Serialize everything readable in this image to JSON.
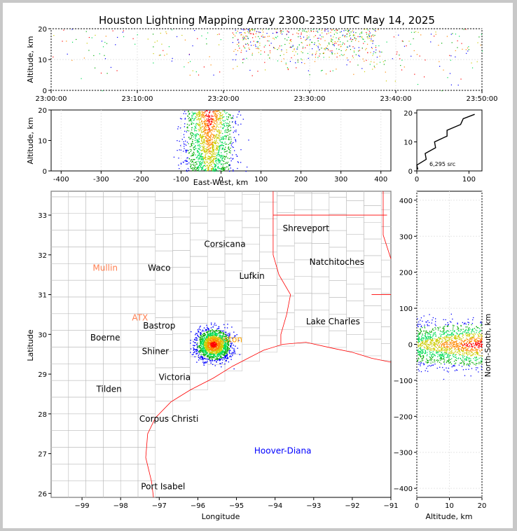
{
  "title": "Houston Lightning Mapping Array 2300-2350 UTC May 14, 2025",
  "colors": {
    "density_scale": [
      "#0000ff",
      "#00aa00",
      "#00dd55",
      "#cccc00",
      "#ff8800",
      "#ff0000"
    ],
    "coast": "#ff0000",
    "county": "#bbbbbb",
    "histogram": "#000000"
  },
  "chart_data": [
    {
      "id": "time_altitude",
      "type": "scatter",
      "xlabel": "",
      "ylabel": "Altitude, km",
      "xticks": [
        "23:00:00",
        "23:10:00",
        "23:20:00",
        "23:30:00",
        "23:40:00",
        "23:50:00"
      ],
      "xlim_minutes": [
        0,
        50
      ],
      "ylim": [
        0,
        20
      ],
      "yticks": [
        0,
        10,
        20
      ],
      "grid": true,
      "activity_windows_minutes": [
        [
          0,
          20,
          "sparse"
        ],
        [
          21,
          38,
          "dense"
        ],
        [
          38,
          50,
          "sparse"
        ]
      ]
    },
    {
      "id": "eastwest_altitude",
      "type": "scatter",
      "xlabel": "East-West, km",
      "ylabel": "Altitude, km",
      "xlim": [
        -425,
        425
      ],
      "xticks": [
        -400,
        -300,
        -200,
        -100,
        0,
        100,
        200,
        300,
        400
      ],
      "ylim": [
        0,
        20
      ],
      "yticks": [
        0,
        10,
        20
      ],
      "grid": true,
      "source_cluster": {
        "x_center": -30,
        "x_spread": 40,
        "z_range": [
          0,
          20
        ]
      }
    },
    {
      "id": "altitude_histogram",
      "type": "line",
      "xlabel": "",
      "ylabel": "",
      "xlim": [
        0,
        125
      ],
      "xticks": [
        0,
        100
      ],
      "ylim": [
        0,
        21
      ],
      "yticks": [
        0,
        10,
        20
      ],
      "annotation": "6,295 src",
      "profile": [
        [
          0.5,
          2
        ],
        [
          2,
          5
        ],
        [
          4,
          12
        ],
        [
          6,
          22
        ],
        [
          8,
          30
        ],
        [
          10,
          40
        ],
        [
          12,
          52
        ],
        [
          14,
          64
        ],
        [
          16,
          78
        ],
        [
          18,
          95
        ],
        [
          19.5,
          105
        ]
      ]
    },
    {
      "id": "plan_view",
      "type": "scatter",
      "xlabel": "Longitude",
      "ylabel": "Latitude",
      "xlim": [
        -99.8,
        -91
      ],
      "xticks": [
        -99,
        -98,
        -97,
        -96,
        -95,
        -94,
        -93,
        -92,
        -91
      ],
      "ylim": [
        25.9,
        33.6
      ],
      "yticks": [
        26,
        27,
        28,
        29,
        30,
        31,
        32,
        33
      ],
      "grid": true,
      "source_cluster": {
        "lon_center": -95.6,
        "lat_center": 29.75,
        "lon_spread": 0.5,
        "lat_spread": 0.5
      },
      "places": [
        {
          "name": "Shreveport",
          "lon": -93.2,
          "lat": 32.6,
          "color": "#000000"
        },
        {
          "name": "Corsicana",
          "lon": -95.3,
          "lat": 32.2,
          "color": "#000000"
        },
        {
          "name": "Natchitoches",
          "lon": -92.4,
          "lat": 31.75,
          "color": "#000000"
        },
        {
          "name": "Mullin",
          "lon": -98.4,
          "lat": 31.6,
          "color": "#ff7f50"
        },
        {
          "name": "Waco",
          "lon": -97.0,
          "lat": 31.6,
          "color": "#000000"
        },
        {
          "name": "Lufkin",
          "lon": -94.6,
          "lat": 31.4,
          "color": "#000000"
        },
        {
          "name": "ATX",
          "lon": -97.5,
          "lat": 30.35,
          "color": "#ff7f50"
        },
        {
          "name": "Lake Charles",
          "lon": -92.5,
          "lat": 30.25,
          "color": "#000000"
        },
        {
          "name": "Bastrop",
          "lon": -97.0,
          "lat": 30.15,
          "color": "#000000"
        },
        {
          "name": "Houston",
          "lon": -95.3,
          "lat": 29.8,
          "color": "#ffa500"
        },
        {
          "name": "Boerne",
          "lon": -98.4,
          "lat": 29.85,
          "color": "#000000"
        },
        {
          "name": "Shiner",
          "lon": -97.1,
          "lat": 29.5,
          "color": "#000000"
        },
        {
          "name": "Victoria",
          "lon": -96.6,
          "lat": 28.85,
          "color": "#000000"
        },
        {
          "name": "Tilden",
          "lon": -98.3,
          "lat": 28.55,
          "color": "#000000"
        },
        {
          "name": "Corpus Christi",
          "lon": -96.75,
          "lat": 27.8,
          "color": "#000000"
        },
        {
          "name": "Hoover-Diana",
          "lon": -93.8,
          "lat": 27.0,
          "color": "#0000ff"
        },
        {
          "name": "Port Isabel",
          "lon": -96.9,
          "lat": 26.1,
          "color": "#000000"
        }
      ]
    },
    {
      "id": "altitude_northsouth",
      "type": "scatter",
      "xlabel": "Altitude, km",
      "ylabel": "North-South, km",
      "xlim": [
        0,
        20
      ],
      "xticks": [
        0,
        10,
        20
      ],
      "ylim": [
        -425,
        425
      ],
      "yticks": [
        -400,
        -300,
        -200,
        -100,
        0,
        100,
        200,
        300,
        400
      ],
      "grid": true,
      "source_cluster": {
        "y_center": 0,
        "y_spread": 45,
        "z_range": [
          0,
          20
        ]
      }
    }
  ]
}
